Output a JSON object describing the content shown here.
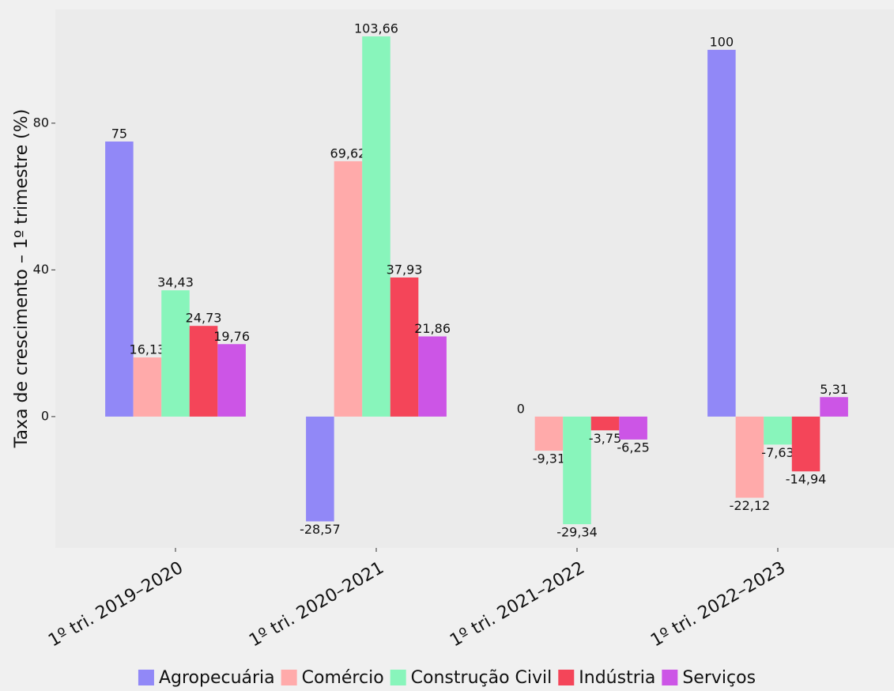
{
  "chart_data": {
    "type": "bar",
    "ylabel": "Taxa de crescimento – 1º trimestre (%)",
    "categories": [
      "1º tri. 2019–2020",
      "1º tri. 2020–2021",
      "1º tri. 2021–2022",
      "1º tri. 2022–2023"
    ],
    "series": [
      {
        "name": "Agropecuária",
        "color": "#9188f7",
        "values": [
          75,
          -28.57,
          0,
          100
        ],
        "value_labels": [
          "75",
          "-28,57",
          "0",
          "100"
        ]
      },
      {
        "name": "Comércio",
        "color": "#ffaaaa",
        "values": [
          16.13,
          69.62,
          -9.31,
          -22.12
        ],
        "value_labels": [
          "16,13",
          "69,62",
          "-9,31",
          "-22,12"
        ]
      },
      {
        "name": "Construção Civil",
        "color": "#88f5bb",
        "values": [
          34.43,
          103.66,
          -29.34,
          -7.63
        ],
        "value_labels": [
          "34,43",
          "103,66",
          "-29,34",
          "-7,63"
        ]
      },
      {
        "name": "Indústria",
        "color": "#f44559",
        "values": [
          24.73,
          37.93,
          -3.75,
          -14.94
        ],
        "value_labels": [
          "24,73",
          "37,93",
          "-3,75",
          "-14,94"
        ]
      },
      {
        "name": "Serviços",
        "color": "#cc55e6",
        "values": [
          19.76,
          21.86,
          -6.25,
          5.31
        ],
        "value_labels": [
          "19,76",
          "21,86",
          "-6,25",
          "5,31"
        ]
      }
    ],
    "ylim": [
      -35.8,
      111
    ],
    "yticks": [
      0,
      40,
      80
    ],
    "grid": false,
    "legend": "bottom"
  }
}
